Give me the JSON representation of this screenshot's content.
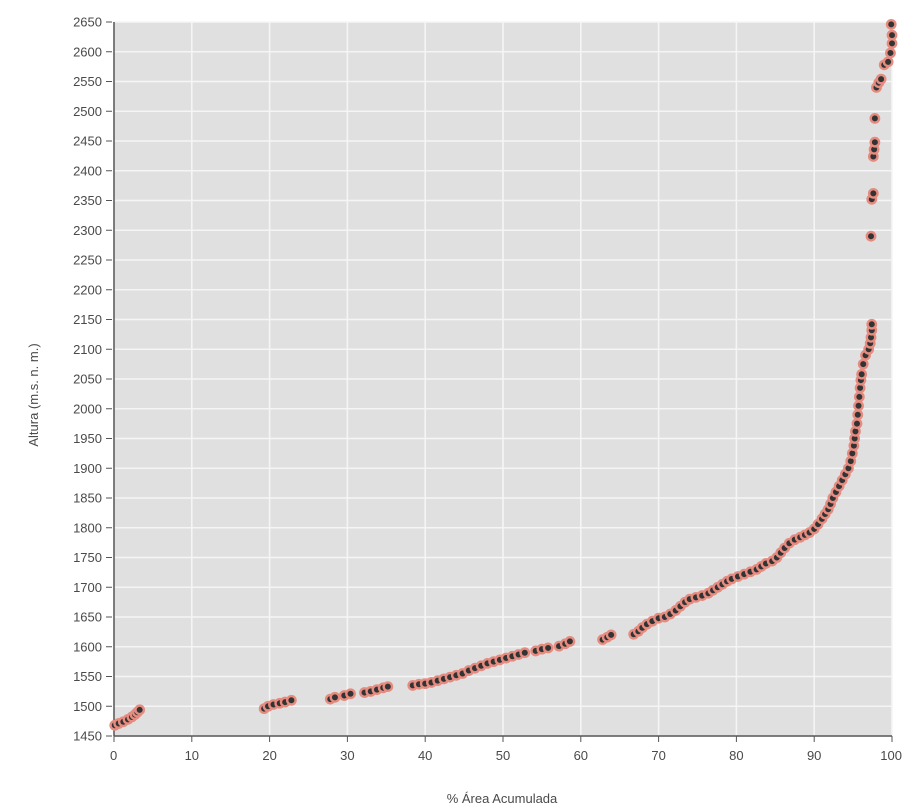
{
  "chart_data": {
    "type": "scatter",
    "xlabel": "% Área Acumulada",
    "ylabel": "Altura (m.s. n. m.)",
    "xlim": [
      0,
      100
    ],
    "ylim": [
      1450,
      2650
    ],
    "x_ticks": [
      0,
      10,
      20,
      30,
      40,
      50,
      60,
      70,
      80,
      90,
      100
    ],
    "y_ticks": [
      1450,
      1500,
      1550,
      1600,
      1650,
      1700,
      1750,
      1800,
      1850,
      1900,
      1950,
      2000,
      2050,
      2100,
      2150,
      2200,
      2250,
      2300,
      2350,
      2400,
      2450,
      2500,
      2550,
      2600,
      2650
    ],
    "grid": true,
    "colors": {
      "background": "#e0e0e0",
      "grid": "#f5f5f5",
      "marker_fill": "#333333",
      "marker_edge": "#e58b7f",
      "axis": "#555555",
      "text": "#4a4a4a"
    },
    "series": [
      {
        "points": [
          [
            0.1,
            1468
          ],
          [
            0.6,
            1471
          ],
          [
            1.2,
            1474
          ],
          [
            1.8,
            1478
          ],
          [
            2.3,
            1482
          ],
          [
            2.7,
            1486
          ],
          [
            3.0,
            1490
          ],
          [
            3.3,
            1494
          ],
          [
            19.3,
            1496
          ],
          [
            19.8,
            1500
          ],
          [
            20.5,
            1503
          ],
          [
            21.3,
            1505
          ],
          [
            22.0,
            1507
          ],
          [
            22.8,
            1510
          ],
          [
            27.8,
            1512
          ],
          [
            28.4,
            1515
          ],
          [
            29.6,
            1518
          ],
          [
            30.4,
            1521
          ],
          [
            32.2,
            1523
          ],
          [
            33.0,
            1525
          ],
          [
            33.8,
            1528
          ],
          [
            34.6,
            1531
          ],
          [
            35.2,
            1533
          ],
          [
            38.4,
            1535
          ],
          [
            39.2,
            1537
          ],
          [
            40.0,
            1538
          ],
          [
            40.8,
            1540
          ],
          [
            41.6,
            1543
          ],
          [
            42.4,
            1546
          ],
          [
            43.2,
            1549
          ],
          [
            44.0,
            1552
          ],
          [
            44.8,
            1555
          ],
          [
            45.6,
            1560
          ],
          [
            46.4,
            1564
          ],
          [
            47.2,
            1568
          ],
          [
            48.0,
            1572
          ],
          [
            48.8,
            1575
          ],
          [
            49.6,
            1578
          ],
          [
            50.4,
            1581
          ],
          [
            51.2,
            1584
          ],
          [
            52.0,
            1587
          ],
          [
            52.8,
            1590
          ],
          [
            54.2,
            1593
          ],
          [
            55.0,
            1596
          ],
          [
            55.8,
            1598
          ],
          [
            57.2,
            1601
          ],
          [
            58.0,
            1605
          ],
          [
            58.6,
            1609
          ],
          [
            62.8,
            1612
          ],
          [
            63.4,
            1616
          ],
          [
            63.9,
            1620
          ],
          [
            66.8,
            1621
          ],
          [
            67.4,
            1626
          ],
          [
            67.9,
            1632
          ],
          [
            68.5,
            1638
          ],
          [
            69.2,
            1643
          ],
          [
            70.0,
            1648
          ],
          [
            70.8,
            1650
          ],
          [
            71.5,
            1655
          ],
          [
            72.2,
            1661
          ],
          [
            72.8,
            1668
          ],
          [
            73.4,
            1675
          ],
          [
            74.0,
            1680
          ],
          [
            74.8,
            1683
          ],
          [
            75.6,
            1686
          ],
          [
            76.4,
            1690
          ],
          [
            77.0,
            1695
          ],
          [
            77.6,
            1700
          ],
          [
            78.2,
            1705
          ],
          [
            78.8,
            1710
          ],
          [
            79.4,
            1714
          ],
          [
            80.2,
            1718
          ],
          [
            81.0,
            1722
          ],
          [
            81.8,
            1726
          ],
          [
            82.6,
            1730
          ],
          [
            83.2,
            1735
          ],
          [
            83.8,
            1740
          ],
          [
            84.6,
            1744
          ],
          [
            85.2,
            1750
          ],
          [
            85.7,
            1758
          ],
          [
            86.2,
            1766
          ],
          [
            86.8,
            1774
          ],
          [
            87.5,
            1780
          ],
          [
            88.2,
            1784
          ],
          [
            88.8,
            1788
          ],
          [
            89.4,
            1792
          ],
          [
            90.0,
            1798
          ],
          [
            90.5,
            1806
          ],
          [
            91.0,
            1815
          ],
          [
            91.4,
            1823
          ],
          [
            91.8,
            1831
          ],
          [
            92.1,
            1840
          ],
          [
            92.4,
            1850
          ],
          [
            92.8,
            1860
          ],
          [
            93.2,
            1870
          ],
          [
            93.6,
            1880
          ],
          [
            94.0,
            1890
          ],
          [
            94.4,
            1900
          ],
          [
            94.7,
            1912
          ],
          [
            94.9,
            1925
          ],
          [
            95.1,
            1938
          ],
          [
            95.2,
            1950
          ],
          [
            95.3,
            1962
          ],
          [
            95.5,
            1975
          ],
          [
            95.6,
            1990
          ],
          [
            95.7,
            2005
          ],
          [
            95.8,
            2020
          ],
          [
            95.9,
            2035
          ],
          [
            96.0,
            2048
          ],
          [
            96.1,
            2058
          ],
          [
            96.3,
            2075
          ],
          [
            96.6,
            2090
          ],
          [
            97.0,
            2100
          ],
          [
            97.2,
            2110
          ],
          [
            97.3,
            2120
          ],
          [
            97.4,
            2132
          ],
          [
            97.4,
            2142
          ],
          [
            97.3,
            2290
          ],
          [
            97.4,
            2352
          ],
          [
            97.6,
            2362
          ],
          [
            97.6,
            2424
          ],
          [
            97.7,
            2436
          ],
          [
            97.8,
            2448
          ],
          [
            97.8,
            2488
          ],
          [
            98.0,
            2540
          ],
          [
            98.3,
            2548
          ],
          [
            98.6,
            2554
          ],
          [
            99.0,
            2578
          ],
          [
            99.5,
            2583
          ],
          [
            99.8,
            2598
          ],
          [
            100.0,
            2614
          ],
          [
            100.0,
            2628
          ],
          [
            99.9,
            2646
          ]
        ]
      }
    ]
  }
}
